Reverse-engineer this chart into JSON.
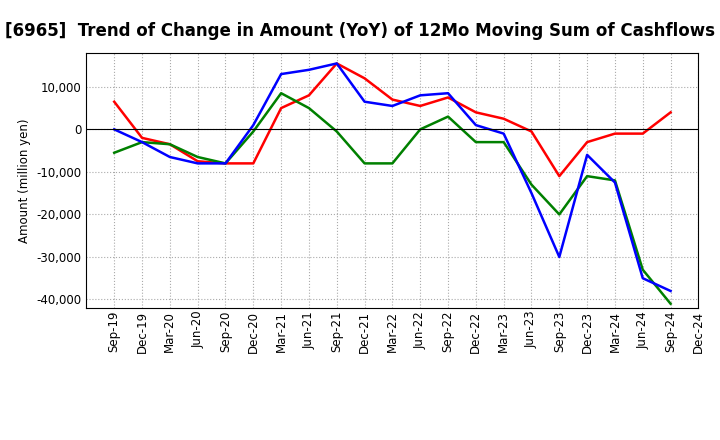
{
  "title": "[6965]  Trend of Change in Amount (YoY) of 12Mo Moving Sum of Cashflows",
  "ylabel": "Amount (million yen)",
  "xlabel": "",
  "x_labels": [
    "Sep-19",
    "Dec-19",
    "Mar-20",
    "Jun-20",
    "Sep-20",
    "Dec-20",
    "Mar-21",
    "Jun-21",
    "Sep-21",
    "Dec-21",
    "Mar-22",
    "Jun-22",
    "Sep-22",
    "Dec-22",
    "Mar-23",
    "Jun-23",
    "Sep-23",
    "Dec-23",
    "Mar-24",
    "Jun-24",
    "Sep-24",
    "Dec-24"
  ],
  "operating": [
    6500,
    -2000,
    -3500,
    -7500,
    -8000,
    -8000,
    5000,
    8000,
    15500,
    12000,
    7000,
    5500,
    7500,
    4000,
    2500,
    -500,
    -11000,
    -3000,
    -1000,
    -1000,
    4000,
    null
  ],
  "investing": [
    -5500,
    -3000,
    -3500,
    -6500,
    -8000,
    -500,
    8500,
    5000,
    -500,
    -8000,
    -8000,
    0,
    3000,
    -3000,
    -3000,
    -13000,
    -20000,
    -11000,
    -12000,
    -33000,
    -41000,
    null
  ],
  "free": [
    0,
    -3000,
    -6500,
    -8000,
    -8000,
    1000,
    13000,
    14000,
    15500,
    6500,
    5500,
    8000,
    8500,
    1000,
    -1000,
    -15000,
    -30000,
    -6000,
    -12500,
    -35000,
    -38000,
    null
  ],
  "operating_color": "#ff0000",
  "investing_color": "#008000",
  "free_color": "#0000ff",
  "ylim": [
    -42000,
    18000
  ],
  "yticks": [
    -40000,
    -30000,
    -20000,
    -10000,
    0,
    10000
  ],
  "background_color": "#ffffff",
  "plot_bg_color": "#ffffff",
  "grid_color": "#aaaaaa",
  "title_fontsize": 12,
  "legend_fontsize": 9.5,
  "axis_fontsize": 8.5
}
